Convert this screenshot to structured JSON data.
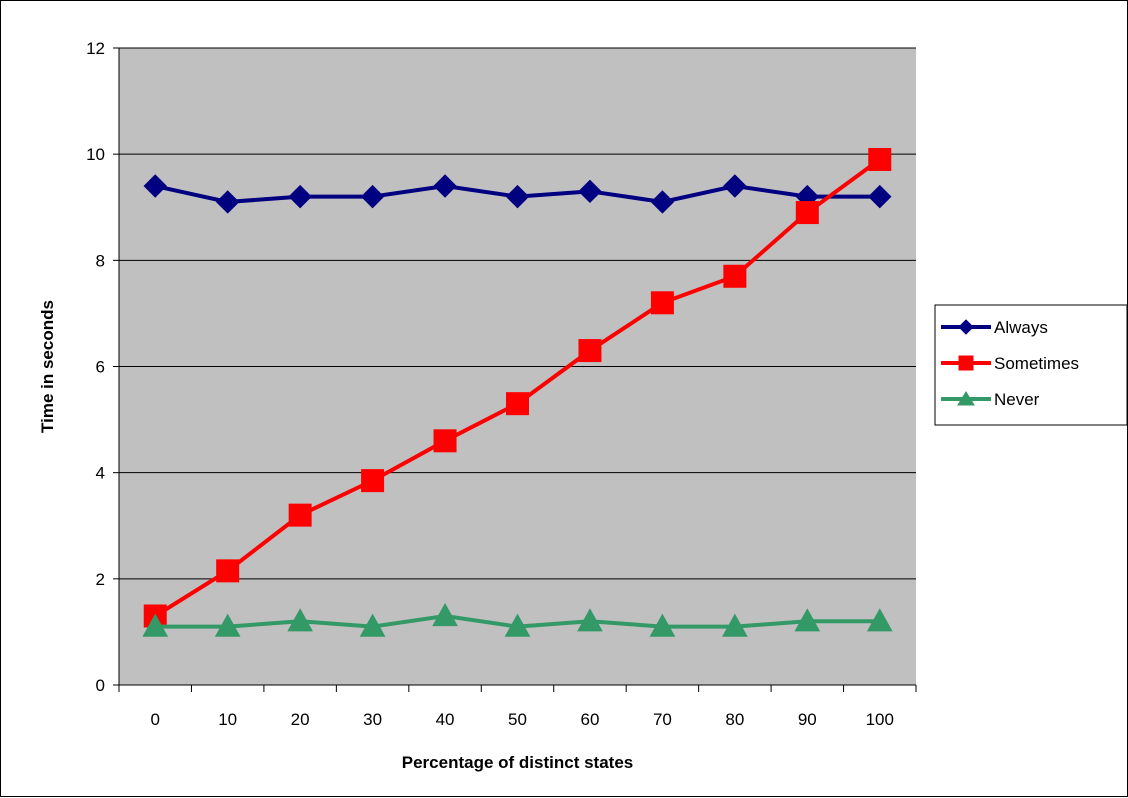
{
  "chart_data": {
    "type": "line",
    "title": "",
    "xlabel": "Percentage of distinct states",
    "ylabel": "Time in seconds",
    "categories": [
      "0",
      "10",
      "20",
      "30",
      "40",
      "50",
      "60",
      "70",
      "80",
      "90",
      "100"
    ],
    "ylim": [
      0,
      12
    ],
    "yticks": [
      "0",
      "2",
      "4",
      "6",
      "8",
      "10",
      "12"
    ],
    "grid": "horizontal major gridlines",
    "plot_background": "#c0c0c0",
    "legend_position": "right",
    "series": [
      {
        "name": "Always",
        "color": "#000080",
        "marker": "diamond",
        "values": [
          9.4,
          9.1,
          9.2,
          9.2,
          9.4,
          9.2,
          9.3,
          9.1,
          9.4,
          9.2,
          9.2
        ]
      },
      {
        "name": "Sometimes",
        "color": "#ff0000",
        "marker": "square",
        "values": [
          1.3,
          2.15,
          3.2,
          3.85,
          4.6,
          5.3,
          6.3,
          7.2,
          7.7,
          8.9,
          9.9
        ]
      },
      {
        "name": "Never",
        "color": "#339966",
        "marker": "triangle",
        "values": [
          1.1,
          1.1,
          1.2,
          1.1,
          1.3,
          1.1,
          1.2,
          1.1,
          1.1,
          1.2,
          1.2
        ]
      }
    ]
  }
}
